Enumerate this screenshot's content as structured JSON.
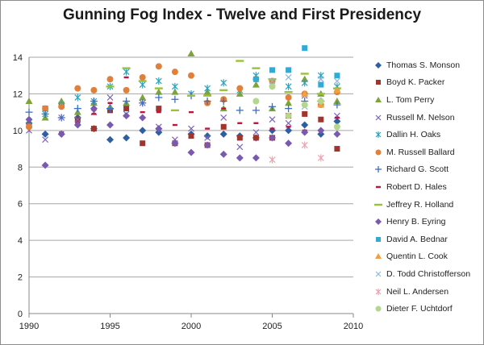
{
  "chart_data": {
    "type": "scatter",
    "title": "Gunning Fog Index - Twelve and First Presidency",
    "xlabel": "",
    "ylabel": "",
    "xlim": [
      1990,
      2010
    ],
    "ylim": [
      0,
      14
    ],
    "x_ticks": [
      1990,
      1995,
      2000,
      2005,
      2010
    ],
    "y_ticks": [
      0,
      2,
      4,
      6,
      8,
      10,
      12,
      14
    ],
    "grid": "horizontal",
    "legend_position": "right",
    "series": [
      {
        "name": "Thomas S. Monson",
        "marker": "diamond",
        "color": "#2e5fa3",
        "points": [
          [
            1990,
            10.4
          ],
          [
            1991,
            9.8
          ],
          [
            1992,
            9.8
          ],
          [
            1993,
            10.7
          ],
          [
            1994,
            10.1
          ],
          [
            1995,
            9.5
          ],
          [
            1996,
            9.6
          ],
          [
            1997,
            10.0
          ],
          [
            1998,
            9.9
          ],
          [
            1999,
            9.3
          ],
          [
            2000,
            9.8
          ],
          [
            2001,
            9.7
          ],
          [
            2002,
            9.8
          ],
          [
            2003,
            9.7
          ],
          [
            2004,
            9.6
          ],
          [
            2005,
            10.0
          ],
          [
            2006,
            10.0
          ],
          [
            2007,
            10.3
          ],
          [
            2008,
            9.8
          ],
          [
            2009,
            10.5
          ]
        ]
      },
      {
        "name": "Boyd K. Packer",
        "marker": "square",
        "color": "#a0342e",
        "points": [
          [
            1990,
            10.3
          ],
          [
            1991,
            11.2
          ],
          [
            1992,
            11.4
          ],
          [
            1993,
            10.6
          ],
          [
            1994,
            10.1
          ],
          [
            1995,
            11.1
          ],
          [
            1996,
            11.2
          ],
          [
            1997,
            9.3
          ],
          [
            1998,
            11.2
          ],
          [
            1999,
            9.3
          ],
          [
            2000,
            9.7
          ],
          [
            2001,
            9.2
          ],
          [
            2002,
            10.2
          ],
          [
            2003,
            9.6
          ],
          [
            2004,
            9.6
          ],
          [
            2005,
            9.6
          ],
          [
            2006,
            10.8
          ],
          [
            2007,
            10.9
          ],
          [
            2008,
            10.6
          ],
          [
            2009,
            9.0
          ]
        ]
      },
      {
        "name": "L. Tom Perry",
        "marker": "triangle",
        "color": "#7da33a",
        "points": [
          [
            1990,
            11.6
          ],
          [
            1991,
            10.7
          ],
          [
            1992,
            11.6
          ],
          [
            1993,
            11.0
          ],
          [
            1994,
            11.5
          ],
          [
            1995,
            11.3
          ],
          [
            1996,
            11.5
          ],
          [
            1997,
            11.8
          ],
          [
            1998,
            12.1
          ],
          [
            1999,
            12.1
          ],
          [
            2000,
            14.2
          ],
          [
            2001,
            12.1
          ],
          [
            2002,
            11.2
          ],
          [
            2003,
            12.0
          ],
          [
            2004,
            12.5
          ],
          [
            2005,
            11.2
          ],
          [
            2006,
            11.5
          ],
          [
            2007,
            12.8
          ],
          [
            2008,
            12.0
          ],
          [
            2009,
            11.6
          ]
        ]
      },
      {
        "name": "Russell M. Nelson",
        "marker": "x",
        "color": "#7c67b8",
        "points": [
          [
            1990,
            10.0
          ],
          [
            1991,
            9.5
          ],
          [
            1992,
            10.7
          ],
          [
            1993,
            10.6
          ],
          [
            1994,
            11.0
          ],
          [
            1995,
            11.8
          ],
          [
            1996,
            10.9
          ],
          [
            1997,
            11.5
          ],
          [
            1998,
            10.2
          ],
          [
            1999,
            9.5
          ],
          [
            2000,
            10.1
          ],
          [
            2001,
            9.6
          ],
          [
            2002,
            10.7
          ],
          [
            2003,
            9.1
          ],
          [
            2004,
            9.9
          ],
          [
            2005,
            10.6
          ],
          [
            2006,
            10.4
          ],
          [
            2007,
            11.9
          ],
          [
            2008,
            12.8
          ],
          [
            2009,
            10.8
          ]
        ]
      },
      {
        "name": "Dallin H. Oaks",
        "marker": "star",
        "color": "#2aa3bd",
        "points": [
          [
            1990,
            10.3
          ],
          [
            1991,
            10.9
          ],
          [
            1992,
            11.4
          ],
          [
            1993,
            11.8
          ],
          [
            1994,
            11.6
          ],
          [
            1995,
            12.4
          ],
          [
            1996,
            13.2
          ],
          [
            1997,
            12.5
          ],
          [
            1998,
            12.7
          ],
          [
            1999,
            12.4
          ],
          [
            2000,
            12.0
          ],
          [
            2001,
            12.3
          ],
          [
            2002,
            12.6
          ],
          [
            2003,
            12.2
          ],
          [
            2004,
            13.0
          ],
          [
            2005,
            12.6
          ],
          [
            2006,
            12.4
          ],
          [
            2007,
            12.6
          ],
          [
            2008,
            13.0
          ],
          [
            2009,
            12.4
          ]
        ]
      },
      {
        "name": "M. Russell Ballard",
        "marker": "circle",
        "color": "#e0803a",
        "points": [
          [
            1990,
            10.2
          ],
          [
            1991,
            11.2
          ],
          [
            1992,
            11.3
          ],
          [
            1993,
            12.3
          ],
          [
            1994,
            12.2
          ],
          [
            1995,
            12.8
          ],
          [
            1996,
            12.2
          ],
          [
            1997,
            12.9
          ],
          [
            1998,
            13.5
          ],
          [
            1999,
            13.2
          ],
          [
            2000,
            13.0
          ],
          [
            2001,
            11.5
          ],
          [
            2002,
            11.7
          ],
          [
            2003,
            12.3
          ],
          [
            2004,
            12.8
          ],
          [
            2005,
            12.7
          ],
          [
            2006,
            11.8
          ],
          [
            2007,
            12.0
          ],
          [
            2008,
            11.4
          ],
          [
            2009,
            12.1
          ]
        ]
      },
      {
        "name": "Richard G. Scott",
        "marker": "plus",
        "color": "#3a6fc4",
        "points": [
          [
            1990,
            11.0
          ],
          [
            1991,
            10.9
          ],
          [
            1992,
            10.7
          ],
          [
            1993,
            11.2
          ],
          [
            1994,
            11.6
          ],
          [
            1995,
            11.2
          ],
          [
            1996,
            11.6
          ],
          [
            1997,
            11.5
          ],
          [
            1998,
            11.8
          ],
          [
            1999,
            11.7
          ],
          [
            2000,
            11.9
          ],
          [
            2001,
            11.6
          ],
          [
            2002,
            11.6
          ],
          [
            2003,
            11.1
          ],
          [
            2004,
            11.1
          ],
          [
            2005,
            11.3
          ],
          [
            2006,
            11.2
          ],
          [
            2007,
            11.6
          ],
          [
            2008,
            11.6
          ],
          [
            2009,
            11.4
          ]
        ]
      },
      {
        "name": "Robert D. Hales",
        "marker": "dash",
        "color": "#c0143c",
        "points": [
          [
            1992,
            9.9
          ],
          [
            1993,
            10.4
          ],
          [
            1994,
            10.9
          ],
          [
            1995,
            11.5
          ],
          [
            1996,
            12.9
          ],
          [
            1997,
            11.0
          ],
          [
            1998,
            11.0
          ],
          [
            1999,
            10.3
          ],
          [
            2000,
            11.0
          ],
          [
            2001,
            10.1
          ],
          [
            2002,
            11.2
          ],
          [
            2003,
            10.4
          ],
          [
            2004,
            10.4
          ],
          [
            2005,
            10.1
          ],
          [
            2006,
            10.2
          ],
          [
            2007,
            10.0
          ],
          [
            2008,
            11.3
          ],
          [
            2009,
            10.7
          ]
        ]
      },
      {
        "name": "Jeffrey R. Holland",
        "marker": "longdash",
        "color": "#99c23c",
        "points": [
          [
            1995,
            12.4
          ],
          [
            1996,
            13.4
          ],
          [
            1997,
            12.7
          ],
          [
            1998,
            12.3
          ],
          [
            1999,
            11.1
          ],
          [
            2000,
            11.9
          ],
          [
            2001,
            11.9
          ],
          [
            2002,
            12.2
          ],
          [
            2003,
            13.8
          ],
          [
            2004,
            13.4
          ],
          [
            2005,
            12.8
          ],
          [
            2006,
            12.1
          ],
          [
            2007,
            13.1
          ],
          [
            2008,
            12.0
          ],
          [
            2009,
            12.3
          ]
        ]
      },
      {
        "name": "Henry B. Eyring",
        "marker": "diamond",
        "color": "#7a5ab0",
        "points": [
          [
            1990,
            10.6
          ],
          [
            1991,
            8.1
          ],
          [
            1992,
            9.8
          ],
          [
            1993,
            10.3
          ],
          [
            1994,
            11.2
          ],
          [
            1995,
            10.3
          ],
          [
            1996,
            10.8
          ],
          [
            1997,
            10.7
          ],
          [
            1998,
            10.1
          ],
          [
            1999,
            9.3
          ],
          [
            2000,
            8.8
          ],
          [
            2001,
            9.2
          ],
          [
            2002,
            8.7
          ],
          [
            2003,
            8.5
          ],
          [
            2004,
            8.5
          ],
          [
            2005,
            9.6
          ],
          [
            2006,
            9.3
          ],
          [
            2007,
            9.9
          ],
          [
            2008,
            10.0
          ],
          [
            2009,
            9.8
          ]
        ]
      },
      {
        "name": "David A. Bednar",
        "marker": "square",
        "color": "#33a9d6",
        "points": [
          [
            2004,
            12.8
          ],
          [
            2005,
            13.3
          ],
          [
            2006,
            13.3
          ],
          [
            2007,
            14.5
          ],
          [
            2008,
            12.5
          ],
          [
            2009,
            13.0
          ]
        ]
      },
      {
        "name": "Quentin L. Cook",
        "marker": "triangle",
        "color": "#f0a040",
        "points": [
          [
            2007,
            12.0
          ],
          [
            2008,
            11.4
          ],
          [
            2009,
            12.2
          ]
        ]
      },
      {
        "name": "D. Todd Christofferson",
        "marker": "x",
        "color": "#8fb8d8",
        "points": [
          [
            2005,
            12.7
          ],
          [
            2006,
            12.9
          ],
          [
            2007,
            11.3
          ],
          [
            2008,
            12.8
          ],
          [
            2009,
            12.7
          ]
        ]
      },
      {
        "name": "Neil L. Andersen",
        "marker": "star",
        "color": "#f0a0b0",
        "points": [
          [
            2005,
            8.4
          ],
          [
            2007,
            9.2
          ],
          [
            2008,
            8.5
          ]
        ]
      },
      {
        "name": "Dieter F. Uchtdorf",
        "marker": "circle",
        "color": "#b5d68f",
        "points": [
          [
            2004,
            11.6
          ],
          [
            2005,
            12.4
          ],
          [
            2006,
            10.8
          ],
          [
            2007,
            11.4
          ],
          [
            2008,
            11.6
          ],
          [
            2009,
            10.2
          ]
        ]
      }
    ]
  }
}
